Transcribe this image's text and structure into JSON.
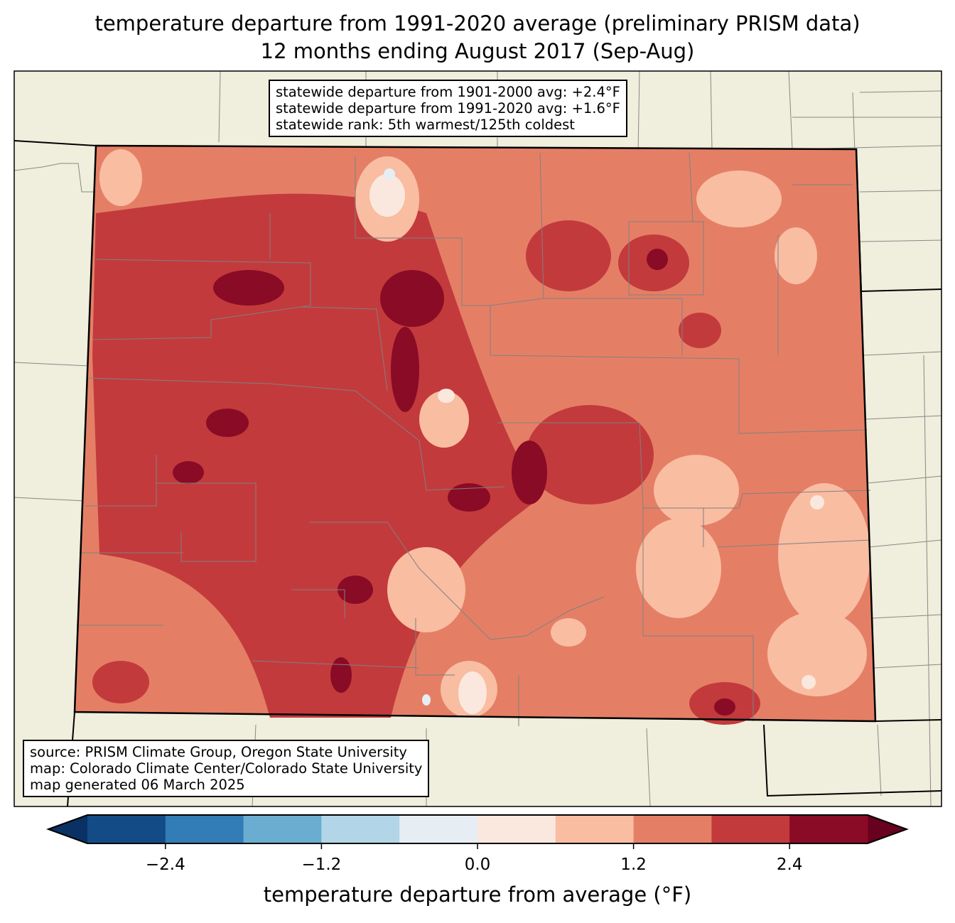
{
  "title": {
    "line1": "temperature departure from 1991-2020 average (preliminary PRISM data)",
    "line2": "12 months ending August 2017 (Sep-Aug)"
  },
  "stats": {
    "line1": "statewide departure from 1901-2000 avg: +2.4°F",
    "line2": "statewide departure from 1991-2020 avg: +1.6°F",
    "line3": "statewide rank: 5th warmest/125th coldest"
  },
  "source": {
    "line1": "source: PRISM Climate Group, Oregon State University",
    "line2": "map: Colorado Climate Center/Colorado State University",
    "line3": "map generated 06 March 2025"
  },
  "colorbar": {
    "label": "temperature departure from average (°F)",
    "levels": [
      -3.0,
      -2.4,
      -1.8,
      -1.2,
      -0.6,
      0.0,
      0.6,
      1.2,
      1.8,
      2.4,
      3.0
    ],
    "colors": [
      "#134b87",
      "#327cb7",
      "#6badd1",
      "#b2d6e7",
      "#e6eef4",
      "#fae8de",
      "#f9bda2",
      "#e47f66",
      "#c33a3c",
      "#8a0b25"
    ],
    "under_color": "#0a3163",
    "over_color": "#68001f",
    "ticks": [
      "−2.4",
      "−1.2",
      "0.0",
      "1.2",
      "2.4"
    ],
    "tick_values": [
      -2.4,
      -1.2,
      0.0,
      1.2,
      2.4
    ]
  },
  "colors": {
    "land": "#f0eedc",
    "border": "#808080"
  }
}
